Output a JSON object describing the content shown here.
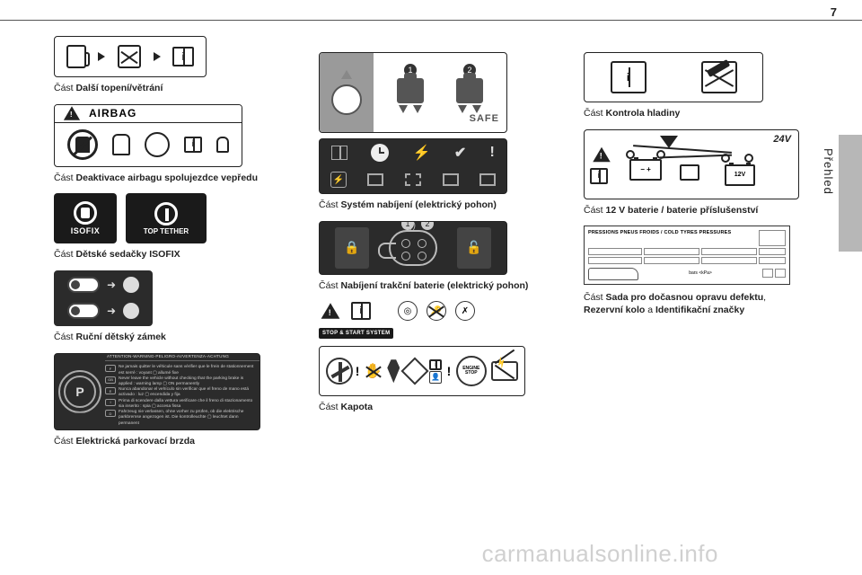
{
  "page_number": "7",
  "side_label": "Přehled",
  "watermark": "carmanualsonline.info",
  "col1": {
    "cap1": {
      "prefix": "Část ",
      "bold": "Další topení/větrání"
    },
    "airbag_word": "AIRBAG",
    "cap2": {
      "prefix": "Část ",
      "bold": "Deaktivace airbagu spolujezdce vepředu"
    },
    "isofix": "ISOFIX",
    "toptether": "TOP TETHER",
    "cap3": {
      "prefix": "Část ",
      "bold": "Dětské sedačky ISOFIX"
    },
    "cap4": {
      "prefix": "Část ",
      "bold": "Ruční dětský zámek"
    },
    "pbrake_header": "ATTENTION-WARNING-PELIGRO-AVVERTENZA-ACHTUNG",
    "pbrake_lines": [
      {
        "code": "F",
        "text": "Ne jamais quitter le véhicule sans vérifier que le frein de stationnement est serré : voyant ▢ allumé fixe"
      },
      {
        "code": "GB",
        "text": "Never leave the vehicle without checking that the parking brake is applied : warning lamp ▢ ON permanently"
      },
      {
        "code": "E",
        "text": "Nunca abandonar el vehículo sin verificar que el freno de mano está activado : luz ▢ encendida y fija"
      },
      {
        "code": "I",
        "text": "Prima di scendere dalla vettura verificare che il freno di stazionamento sia inserito : spia ▢ accesa fissa"
      },
      {
        "code": "D",
        "text": "Fahrzeug nie verlassen, ohne vorher zu prüfen, ob die elektrische parkbremse angezogen ist. Die kontrolleuchte ▢ leuchtet dann permanent"
      }
    ],
    "cap5": {
      "prefix": "Část ",
      "bold": "Elektrická parkovací brzda"
    }
  },
  "col2": {
    "safe": "SAFE",
    "cap1": {
      "prefix": "Část ",
      "bold": "Systém nabíjení (elektrický pohon)"
    },
    "cap2": {
      "prefix": "Část ",
      "bold": "Nabíjení trakční baterie (elektrický pohon)"
    },
    "stopstart": "STOP & START SYSTEM",
    "engine_stop": "ENGINE STOP",
    "cap3": {
      "prefix": "Část ",
      "bold": "Kapota"
    }
  },
  "col3": {
    "cap1": {
      "prefix": "Část ",
      "bold": "Kontrola hladiny"
    },
    "v24": "24V",
    "v12": "12V",
    "cap2": {
      "prefix": "Část ",
      "bold": "12 V baterie / baterie příslušenství"
    },
    "tyre_header": "PRESSIONS PNEUS FROIDS / COLD TYRES PRESSURES",
    "tyre_units": "bars   <kPa>",
    "cap3_pre": "Část ",
    "cap3_b1": "Sada pro dočasnou opravu defektu",
    "cap3_mid": ", ",
    "cap3_b2": "Rezervní kolo",
    "cap3_mid2": " a ",
    "cap3_b3": "Identifikační značky"
  },
  "colors": {
    "text": "#222222",
    "dark": "#2b2b2b",
    "grey": "#9a9a9a",
    "tab": "#b7b7b7"
  }
}
